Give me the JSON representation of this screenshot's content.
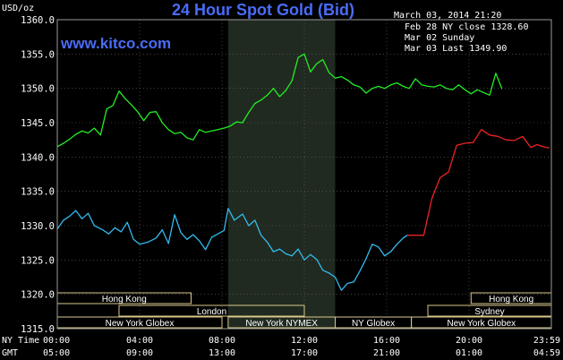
{
  "header": {
    "ylabel": "USD/oz",
    "title": "24 Hour Spot Gold (Bid)",
    "datetime": "March 03, 2014 21:20",
    "site": "www.kitco.com"
  },
  "legend": [
    {
      "label": "Feb 28 NY close 1328.60",
      "color": "#33bbee"
    },
    {
      "label": "Mar 02 Sunday",
      "color": "#ee2222"
    },
    {
      "label": "Mar 03 Last 1349.90",
      "color": "#22ee22"
    }
  ],
  "sessions": {
    "row1": [
      {
        "label": "Hong Kong",
        "start": 0,
        "end": 6.5
      },
      {
        "label": "Hong Kong",
        "start": 20.1,
        "end": 24
      }
    ],
    "row2": [
      {
        "label": "London",
        "start": 3,
        "end": 12
      },
      {
        "label": "Sydney",
        "start": 18,
        "end": 24
      }
    ],
    "row3": [
      {
        "label": "New York Globex",
        "start": 0,
        "end": 8
      },
      {
        "label": "New York NYMEX",
        "start": 8.3,
        "end": 13.5
      },
      {
        "label": "NY Globex",
        "start": 13.5,
        "end": 17.2
      },
      {
        "label": "New York Globex",
        "start": 17.2,
        "end": 24
      }
    ]
  },
  "axis_rows": {
    "row1_label": "NY Time",
    "row2_label": "GMT",
    "ny_ticks": [
      "00:00",
      "04:00",
      "08:00",
      "12:00",
      "16:00",
      "20:00",
      "23:59"
    ],
    "gmt_ticks": [
      "05:00",
      "09:00",
      "13:00",
      "17:00",
      "21:00",
      "01:00",
      "04:59"
    ]
  },
  "chart_data": {
    "type": "line",
    "title": "24 Hour Spot Gold (Bid)",
    "ylabel": "USD/oz",
    "xlabel": "",
    "xlim": [
      0,
      24
    ],
    "ylim": [
      1315,
      1360
    ],
    "yticks": [
      1315,
      1320,
      1325,
      1330,
      1335,
      1340,
      1345,
      1350,
      1355,
      1360
    ],
    "xticks": [
      0,
      4,
      8,
      12,
      16,
      20,
      23.98
    ],
    "highlight_x": [
      8.3,
      13.5
    ],
    "series": [
      {
        "name": "Feb 28 NY close 1328.60",
        "color": "#33bbee",
        "x": [
          0,
          0.3,
          0.6,
          0.9,
          1.2,
          1.5,
          1.8,
          2.2,
          2.5,
          2.8,
          3.1,
          3.4,
          3.7,
          4.0,
          4.4,
          4.8,
          5.1,
          5.4,
          5.7,
          6.0,
          6.3,
          6.6,
          6.9,
          7.2,
          7.5,
          7.8,
          8.1,
          8.3,
          8.6,
          9.0,
          9.3,
          9.6,
          9.9,
          10.2,
          10.5,
          10.8,
          11.1,
          11.4,
          11.7,
          12.0,
          12.3,
          12.6,
          12.9,
          13.2,
          13.5,
          13.8,
          14.1,
          14.4,
          14.7,
          15.0,
          15.3,
          15.6,
          15.9,
          16.2,
          16.5,
          16.8,
          17.0
        ],
        "y": [
          1329.5,
          1330.8,
          1331.4,
          1332.2,
          1331.0,
          1331.8,
          1330.0,
          1329.4,
          1328.8,
          1329.7,
          1329.1,
          1330.5,
          1328.0,
          1327.3,
          1327.6,
          1328.2,
          1329.4,
          1327.4,
          1331.6,
          1329.0,
          1328.0,
          1328.7,
          1327.8,
          1326.5,
          1328.3,
          1328.8,
          1329.3,
          1332.5,
          1330.8,
          1331.7,
          1330.0,
          1330.8,
          1328.6,
          1327.6,
          1326.2,
          1326.6,
          1325.9,
          1325.6,
          1326.6,
          1325.0,
          1325.8,
          1325.1,
          1323.5,
          1323.1,
          1322.5,
          1320.6,
          1321.6,
          1321.8,
          1323.4,
          1325.2,
          1327.3,
          1326.9,
          1325.6,
          1326.2,
          1327.3,
          1328.2,
          1328.6
        ]
      },
      {
        "name": "Mar 02 Sunday",
        "color": "#ee2222",
        "x": [
          17.0,
          17.8,
          18.2,
          18.6,
          19.0,
          19.4,
          19.8,
          20.2,
          20.6,
          21.0,
          21.4,
          21.8,
          22.2,
          22.6,
          23.0,
          23.3,
          23.6,
          23.9
        ],
        "y": [
          1328.6,
          1328.6,
          1334.0,
          1337.0,
          1337.8,
          1341.7,
          1342.0,
          1342.1,
          1344.0,
          1343.2,
          1343.0,
          1342.5,
          1342.4,
          1343.0,
          1341.4,
          1341.8,
          1341.5,
          1341.3
        ]
      },
      {
        "name": "Mar 03 Last 1349.90",
        "color": "#22ee22",
        "x": [
          0,
          0.3,
          0.6,
          0.9,
          1.2,
          1.5,
          1.8,
          2.1,
          2.4,
          2.7,
          3.0,
          3.3,
          3.6,
          3.9,
          4.2,
          4.5,
          4.8,
          5.1,
          5.4,
          5.7,
          6.0,
          6.3,
          6.6,
          6.9,
          7.2,
          7.5,
          7.8,
          8.1,
          8.4,
          8.7,
          9.0,
          9.3,
          9.6,
          9.9,
          10.2,
          10.5,
          10.8,
          11.1,
          11.4,
          11.7,
          12.0,
          12.3,
          12.6,
          12.9,
          13.2,
          13.5,
          13.8,
          14.1,
          14.4,
          14.7,
          15.0,
          15.3,
          15.6,
          15.9,
          16.2,
          16.5,
          16.8,
          17.1,
          17.4,
          17.7,
          18.0,
          18.3,
          18.6,
          18.9,
          19.2,
          19.5,
          19.8,
          20.1,
          20.4,
          20.7,
          21.0,
          21.3,
          21.6
        ],
        "y": [
          1341.5,
          1342.0,
          1342.6,
          1343.3,
          1343.8,
          1343.5,
          1344.2,
          1343.2,
          1347.0,
          1347.5,
          1349.6,
          1348.5,
          1347.6,
          1346.6,
          1345.3,
          1346.5,
          1346.6,
          1345.0,
          1344.0,
          1343.4,
          1343.6,
          1342.8,
          1342.5,
          1344.0,
          1343.6,
          1343.8,
          1344.0,
          1344.2,
          1344.5,
          1345.1,
          1345.0,
          1346.5,
          1347.8,
          1348.3,
          1349.0,
          1350.0,
          1348.8,
          1349.7,
          1351.1,
          1354.5,
          1355.0,
          1352.4,
          1353.6,
          1354.2,
          1352.3,
          1351.5,
          1351.7,
          1351.2,
          1350.5,
          1350.2,
          1349.3,
          1350.0,
          1350.3,
          1350.0,
          1350.5,
          1350.8,
          1350.3,
          1350.0,
          1351.4,
          1350.5,
          1350.3,
          1350.2,
          1350.5,
          1350.0,
          1349.8,
          1350.5,
          1349.8,
          1349.2,
          1349.8,
          1349.4,
          1349.0,
          1352.2,
          1349.9
        ]
      }
    ]
  }
}
